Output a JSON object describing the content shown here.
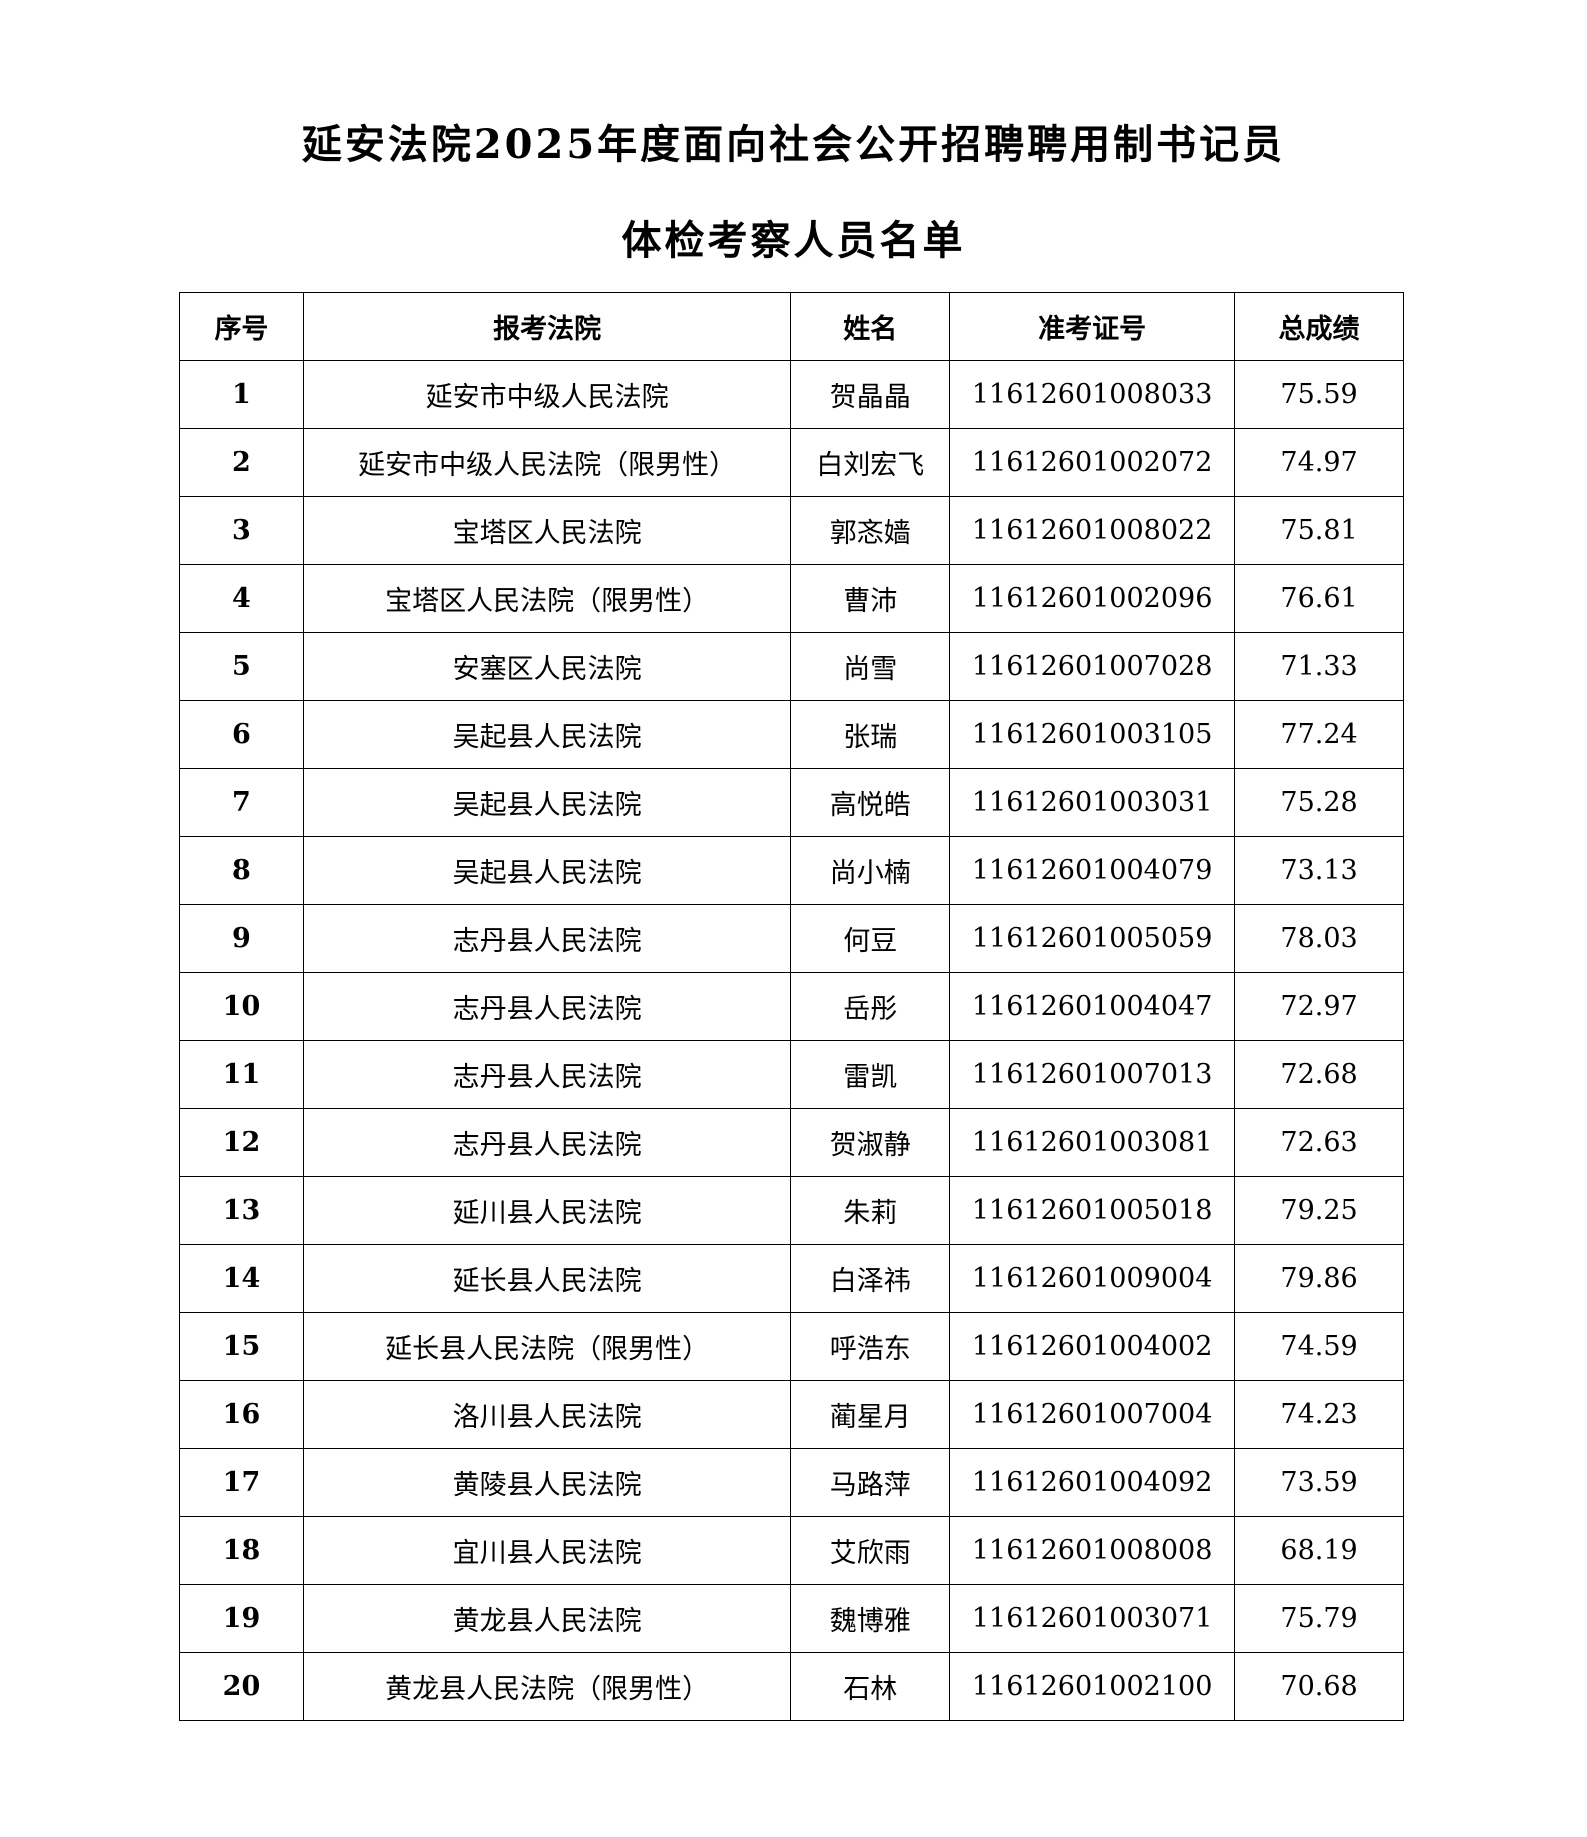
{
  "title_line1": "延安法院2025年度面向社会公开招聘聘用制书记员",
  "title_line2": "体检考察人员名单",
  "table": {
    "headers": [
      "序号",
      "报考法院",
      "姓名",
      "准考证号",
      "总成绩"
    ],
    "rows": [
      [
        "1",
        "延安市中级人民法院",
        "贺晶晶",
        "11612601008033",
        "75.59"
      ],
      [
        "2",
        "延安市中级人民法院（限男性）",
        "白刘宏飞",
        "11612601002072",
        "74.97"
      ],
      [
        "3",
        "宝塔区人民法院",
        "郭忞嫱",
        "11612601008022",
        "75.81"
      ],
      [
        "4",
        "宝塔区人民法院（限男性）",
        "曹沛",
        "11612601002096",
        "76.61"
      ],
      [
        "5",
        "安塞区人民法院",
        "尚雪",
        "11612601007028",
        "71.33"
      ],
      [
        "6",
        "吴起县人民法院",
        "张瑞",
        "11612601003105",
        "77.24"
      ],
      [
        "7",
        "吴起县人民法院",
        "高悦皓",
        "11612601003031",
        "75.28"
      ],
      [
        "8",
        "吴起县人民法院",
        "尚小楠",
        "11612601004079",
        "73.13"
      ],
      [
        "9",
        "志丹县人民法院",
        "何豆",
        "11612601005059",
        "78.03"
      ],
      [
        "10",
        "志丹县人民法院",
        "岳彤",
        "11612601004047",
        "72.97"
      ],
      [
        "11",
        "志丹县人民法院",
        "雷凯",
        "11612601007013",
        "72.68"
      ],
      [
        "12",
        "志丹县人民法院",
        "贺淑静",
        "11612601003081",
        "72.63"
      ],
      [
        "13",
        "延川县人民法院",
        "朱莉",
        "11612601005018",
        "79.25"
      ],
      [
        "14",
        "延长县人民法院",
        "白泽祎",
        "11612601009004",
        "79.86"
      ],
      [
        "15",
        "延长县人民法院（限男性）",
        "呼浩东",
        "11612601004002",
        "74.59"
      ],
      [
        "16",
        "洛川县人民法院",
        "蔺星月",
        "11612601007004",
        "74.23"
      ],
      [
        "17",
        "黄陵县人民法院",
        "马路萍",
        "11612601004092",
        "73.59"
      ],
      [
        "18",
        "宜川县人民法院",
        "艾欣雨",
        "11612601008008",
        "68.19"
      ],
      [
        "19",
        "黄龙县人民法院",
        "魏博雅",
        "11612601003071",
        "75.79"
      ],
      [
        "20",
        "黄龙县人民法院（限男性）",
        "石林",
        "11612601002100",
        "70.68"
      ]
    ]
  }
}
